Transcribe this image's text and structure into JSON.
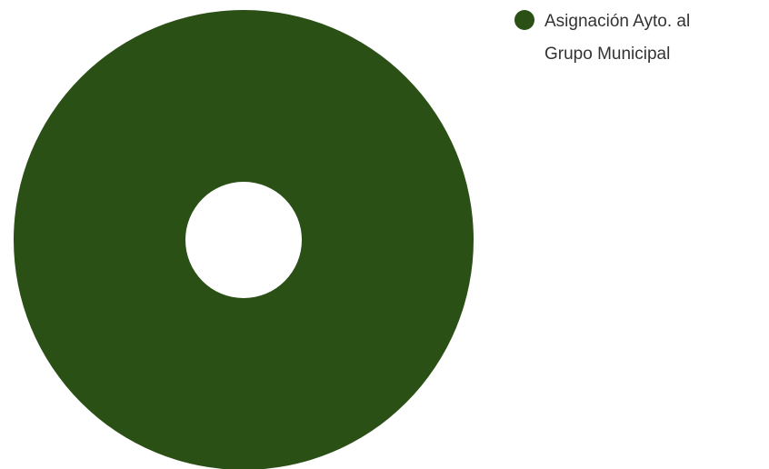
{
  "chart_data": {
    "type": "pie",
    "donut": true,
    "title": "",
    "series": [
      {
        "name": "Asignación Ayto. al Grupo Municipal",
        "value": 100,
        "color": "#2b5016"
      }
    ],
    "legend": {
      "position": "top-right",
      "lines": [
        "Asignación Ayto. al",
        "Grupo Municipal"
      ]
    }
  }
}
